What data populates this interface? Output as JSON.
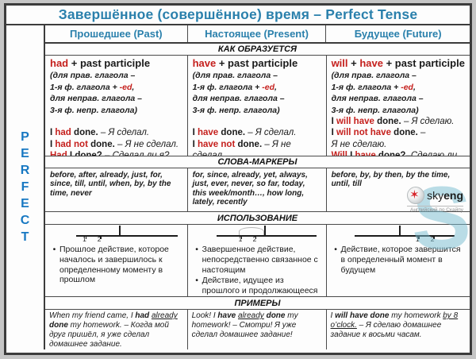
{
  "title": "Завершённое (совершённое) время – Perfect Tense",
  "sidebar": {
    "label": "PERFECT"
  },
  "columns": [
    {
      "header": "Прошедшее (Past)"
    },
    {
      "header": "Настоящее (Present)"
    },
    {
      "header": "Будущее (Future)"
    }
  ],
  "bands": {
    "formation": "КАК ОБРАЗУЕТСЯ",
    "markers": "СЛОВА-МАРКЕРЫ",
    "usage": "ИСПОЛЬЗОВАНИЕ",
    "examples": "ПРИМЕРЫ"
  },
  "formation": {
    "past": [
      [
        [
          "r hd",
          "had"
        ],
        [
          "hd",
          " + past participle"
        ]
      ],
      [
        [
          "nt",
          "(для прав. глагола –"
        ]
      ],
      [
        [
          "nt",
          "1-я ф. глагола + "
        ],
        [
          "r nt",
          "-ed"
        ],
        [
          "nt",
          ","
        ]
      ],
      [
        [
          "nt",
          "для неправ. глагола –"
        ]
      ],
      [
        [
          "nt",
          "3-я ф. непр. глагола)"
        ]
      ],
      [],
      [
        [
          "b",
          "I "
        ],
        [
          "r b",
          "had"
        ],
        [
          "b",
          " done."
        ],
        [
          "",
          "  – "
        ],
        [
          "i",
          "Я сделал."
        ]
      ],
      [
        [
          "b",
          "I "
        ],
        [
          "r b",
          "had not"
        ],
        [
          "b",
          " done."
        ],
        [
          "",
          " – "
        ],
        [
          "i",
          "Я не сделал."
        ]
      ],
      [
        [
          "r b",
          "Had"
        ],
        [
          "b",
          " I done?"
        ],
        [
          "",
          " – "
        ],
        [
          "i",
          "Сделал ли я?"
        ]
      ]
    ],
    "present": [
      [
        [
          "r hd",
          "have"
        ],
        [
          "hd",
          " + past participle"
        ]
      ],
      [
        [
          "nt",
          "(для прав. глагола –"
        ]
      ],
      [
        [
          "nt",
          "1-я ф. глагола + "
        ],
        [
          "r nt",
          "-ed"
        ],
        [
          "nt",
          ","
        ]
      ],
      [
        [
          "nt",
          "для неправ. глагола –"
        ]
      ],
      [
        [
          "nt",
          "3-я ф. непр. глагола)"
        ]
      ],
      [],
      [
        [
          "b",
          "I "
        ],
        [
          "r b",
          "have"
        ],
        [
          "b",
          " done."
        ],
        [
          "",
          " – "
        ],
        [
          "i",
          "Я сделал."
        ]
      ],
      [
        [
          "b",
          "I "
        ],
        [
          "r b",
          "have not"
        ],
        [
          "b",
          " done."
        ],
        [
          "",
          " – "
        ],
        [
          "i",
          "Я не сделал."
        ]
      ],
      [
        [
          "r b",
          "Have"
        ],
        [
          "b",
          " I done?"
        ],
        [
          "",
          " – "
        ],
        [
          "i",
          "Сделал ли я?"
        ]
      ]
    ],
    "future": [
      [
        [
          "r hd",
          "will"
        ],
        [
          "hd",
          " + "
        ],
        [
          "r hd",
          "have"
        ],
        [
          "hd",
          " + past participle"
        ]
      ],
      [
        [
          "nt",
          "(для прав. глагола –"
        ]
      ],
      [
        [
          "nt",
          "1-я ф. глагола + "
        ],
        [
          "r nt",
          "-ed"
        ],
        [
          "nt",
          ","
        ]
      ],
      [
        [
          "nt",
          "для неправ. глагола –"
        ]
      ],
      [
        [
          "nt",
          "3-я ф. непр. глагола)"
        ]
      ],
      [
        [
          "b",
          "I "
        ],
        [
          "r b",
          "will have"
        ],
        [
          "b",
          " done."
        ],
        [
          "",
          " – "
        ],
        [
          "i",
          "Я сделаю."
        ]
      ],
      [
        [
          "b",
          "I "
        ],
        [
          "r b",
          "will not have"
        ],
        [
          "b",
          " done."
        ],
        [
          "",
          " –"
        ]
      ],
      [
        [
          "i",
          "Я не сделаю."
        ]
      ],
      [
        [
          "r b",
          "Will"
        ],
        [
          "b",
          " I "
        ],
        [
          "r b",
          "have"
        ],
        [
          "b",
          " done?"
        ],
        [
          "i",
          "–Сделаю ли я?"
        ]
      ]
    ]
  },
  "markers": {
    "past": "before, after, already, just, for, since, till, until, when, by, by the time, never",
    "present": "for, since, already, yet, always, just, ever, never, so far, today, this week/month…, how long, lately, recently",
    "future": "before, by, by then, by the time, until, till"
  },
  "timeline": {
    "labels": [
      "1",
      "2"
    ]
  },
  "usage": {
    "past": [
      "Прошлое действие, которое началось и завершилось к определенному моменту в прошлом"
    ],
    "present": [
      "Завершенное действие, непосредственно связанное с настоящим",
      "Действие, идущее из прошлого и продолжающееся в настоящем"
    ],
    "future": [
      "Действие, которое завершится в определенный момент в будущем"
    ]
  },
  "examples": {
    "past": [
      [
        [
          "",
          "When my friend came, I "
        ],
        [
          "b",
          "had"
        ],
        [
          "",
          " "
        ],
        [
          "u",
          "already"
        ],
        [
          "",
          " "
        ],
        [
          "b",
          "done"
        ],
        [
          "",
          " my homework. – Когда мой друг пришёл, я уже сделал домашнее задание."
        ]
      ]
    ],
    "present": [
      [
        [
          "",
          "Look! I "
        ],
        [
          "b",
          "have"
        ],
        [
          "",
          " "
        ],
        [
          "u",
          "already"
        ],
        [
          "",
          " "
        ],
        [
          "b",
          "done"
        ],
        [
          "",
          " my homework! – Смотри! Я уже сделал домашнее задание!"
        ]
      ]
    ],
    "future": [
      [
        [
          "",
          "I "
        ],
        [
          "b",
          "will have done"
        ],
        [
          "",
          " my homework "
        ],
        [
          "u",
          "by 8 o’clock."
        ],
        [
          "",
          " – Я сделаю домашнее задание к восьми часам."
        ]
      ]
    ]
  },
  "logo": {
    "brand_sky": "sky",
    "brand_eng": "eng",
    "tagline": "Английский по Скайпу",
    "watermark": "S"
  },
  "colors": {
    "accent_teal": "#2a80ac",
    "perfect_blue": "#1778c2",
    "red": "#c5201d",
    "border": "#3c3c3c"
  }
}
